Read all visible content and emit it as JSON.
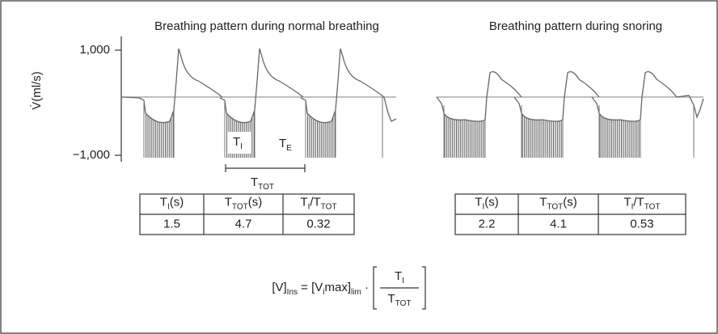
{
  "titles": {
    "left": "Breathing pattern during normal breathing",
    "right": "Breathing pattern during snoring"
  },
  "y_axis": {
    "label": "V̇(ml/s)",
    "ticks": [
      "1,000",
      "−1,000"
    ]
  },
  "annotations": {
    "ti": [
      {
        "text": "T"
      },
      {
        "text": "I",
        "sub": true
      }
    ],
    "te": [
      {
        "text": "T"
      },
      {
        "text": "E",
        "sub": true
      }
    ],
    "ttot": [
      {
        "text": "T"
      },
      {
        "text": "TOT",
        "sub": true
      }
    ]
  },
  "tables": [
    {
      "header": [
        [
          {
            "text": "T"
          },
          {
            "text": "I",
            "sub": true
          },
          {
            "text": "(s)"
          }
        ],
        [
          {
            "text": "T"
          },
          {
            "text": "TOT",
            "sub": true
          },
          {
            "text": "(s)"
          }
        ],
        [
          {
            "text": "T"
          },
          {
            "text": "I",
            "sub": true
          },
          {
            "text": "/T"
          },
          {
            "text": "TOT",
            "sub": true
          }
        ]
      ],
      "row": [
        "1.5",
        "4.7",
        "0.32"
      ]
    },
    {
      "header": [
        [
          {
            "text": "T"
          },
          {
            "text": "I",
            "sub": true
          },
          {
            "text": "(s)"
          }
        ],
        [
          {
            "text": "T"
          },
          {
            "text": "TOT",
            "sub": true
          },
          {
            "text": "(s)"
          }
        ],
        [
          {
            "text": "T"
          },
          {
            "text": "I",
            "sub": true
          },
          {
            "text": "/T"
          },
          {
            "text": "TOT",
            "sub": true
          }
        ]
      ],
      "row": [
        "2.2",
        "4.1",
        "0.53"
      ]
    }
  ],
  "formula": {
    "left": [
      {
        "text": "[V]"
      },
      {
        "text": "Ins",
        "sub": true
      },
      {
        "text": " = [V"
      },
      {
        "text": "i",
        "sub": true
      },
      {
        "text": "max]"
      },
      {
        "text": "lim",
        "sub": true
      },
      {
        "text": " · "
      }
    ],
    "numerator": [
      {
        "text": "T"
      },
      {
        "text": "I",
        "sub": true
      }
    ],
    "denominator": [
      {
        "text": "T"
      },
      {
        "text": "TOT",
        "sub": true
      }
    ]
  }
}
